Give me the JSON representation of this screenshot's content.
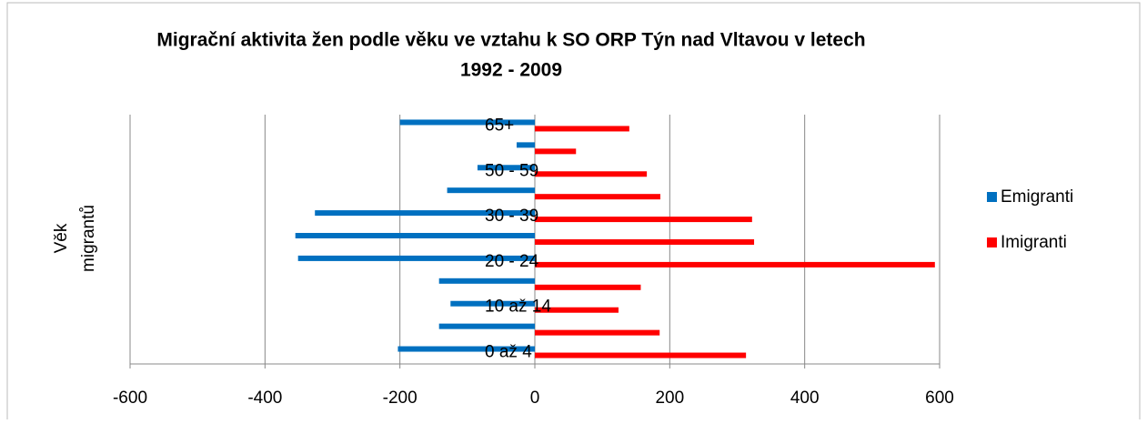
{
  "chart_data": {
    "type": "bar",
    "orientation": "horizontal",
    "title": [
      "Migrační aktivita žen podle věku ve vztahu k SO ORP Týn nad Vltavou v letech",
      "1992 - 2009"
    ],
    "ylabel": [
      "Věk",
      "migrantů"
    ],
    "categories": [
      "0 až 4",
      null,
      "10 až 14",
      null,
      "20 - 24",
      null,
      "30 - 39",
      null,
      "50 - 59",
      null,
      "65+"
    ],
    "series": [
      {
        "name": "Emigranti",
        "color": "#0070c0",
        "values": [
          -203,
          -142,
          -125,
          -142,
          -351,
          -355,
          -326,
          -130,
          -85,
          -27,
          -200
        ]
      },
      {
        "name": "Imigranti",
        "color": "#ff0000",
        "values": [
          313,
          185,
          124,
          157,
          593,
          325,
          322,
          186,
          166,
          61,
          140
        ]
      }
    ],
    "xlim": [
      -600,
      600
    ],
    "xticks": [
      -600,
      -400,
      -200,
      0,
      200,
      400,
      600
    ],
    "grid": true,
    "legend": "right"
  }
}
